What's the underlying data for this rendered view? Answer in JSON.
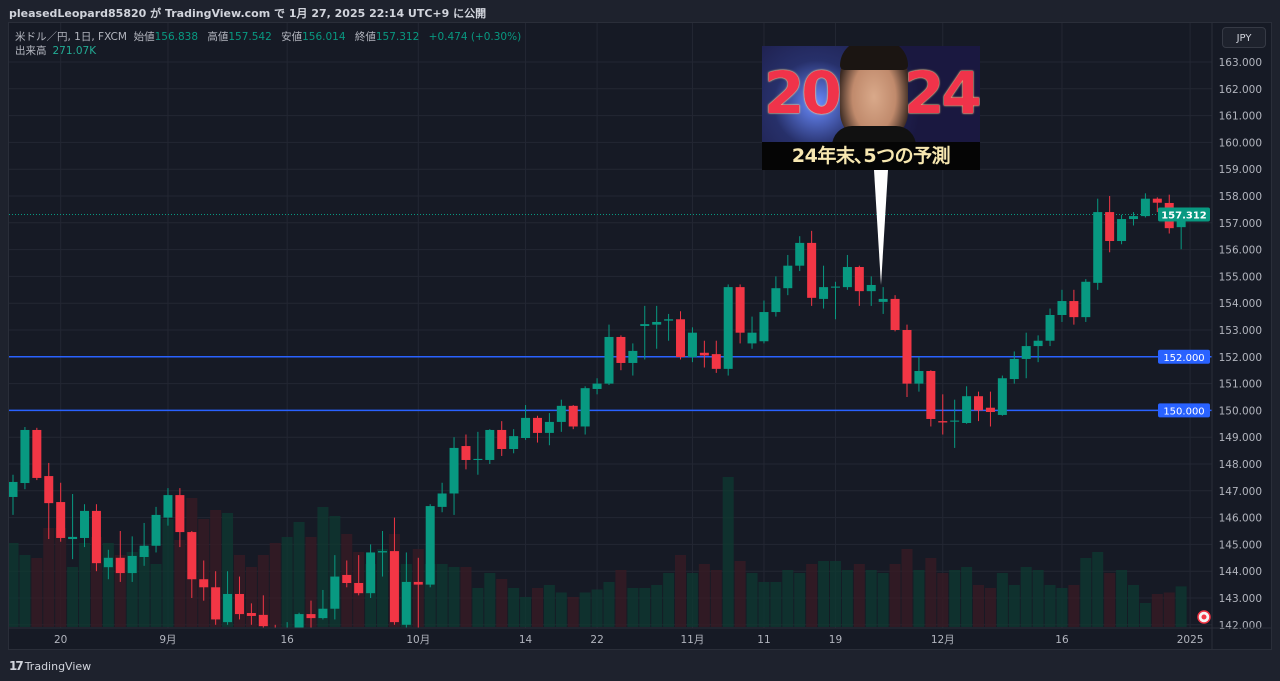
{
  "header": {
    "title": "pleasedLeopard85820 が TradingView.com で 1月 27, 2025 22:14 UTC+9 に公開"
  },
  "legend": {
    "symbol": "米ドル／円, 1日, FXCM",
    "open_label": "始値",
    "open": "156.838",
    "high_label": "高値",
    "high": "157.542",
    "low_label": "安値",
    "low": "156.014",
    "close_label": "終値",
    "close": "157.312",
    "change": "+0.474 (+0.30%)",
    "volume_label": "出来高",
    "volume": "271.07K"
  },
  "currency_button": "JPY",
  "thumbnail": {
    "year_left": "20",
    "year_right": "24",
    "caption": "24年末､5つの予測"
  },
  "footer": {
    "logo_mark": "17",
    "brand": "TradingView"
  },
  "colors": {
    "up": "#089981",
    "down": "#f23645",
    "hline": "#2962ff",
    "last_price": "#089981"
  },
  "icons": {
    "currency_flag": "jpy-flag-icon"
  },
  "chart_data": {
    "type": "candlestick",
    "ylim": [
      142,
      163
    ],
    "y_ticks": [
      "142.000",
      "143.000",
      "144.000",
      "145.000",
      "146.000",
      "147.000",
      "148.000",
      "149.000",
      "150.000",
      "151.000",
      "152.000",
      "153.000",
      "154.000",
      "155.000",
      "156.000",
      "157.000",
      "158.000",
      "159.000",
      "160.000",
      "161.000",
      "162.000",
      "163.000"
    ],
    "x_ticks": [
      {
        "label": "20",
        "index": 4
      },
      {
        "label": "9月",
        "index": 13
      },
      {
        "label": "16",
        "index": 23
      },
      {
        "label": "10月",
        "index": 34
      },
      {
        "label": "14",
        "index": 43
      },
      {
        "label": "22",
        "index": 49
      },
      {
        "label": "11月",
        "index": 57
      },
      {
        "label": "11",
        "index": 63
      },
      {
        "label": "19",
        "index": 69
      },
      {
        "label": "12月",
        "index": 78
      },
      {
        "label": "16",
        "index": 88
      },
      {
        "label": "2025",
        "index": 99
      }
    ],
    "horizontal_lines": [
      {
        "price": 152.0,
        "label": "152.000"
      },
      {
        "price": 150.0,
        "label": "150.000"
      }
    ],
    "last_price": {
      "price": 157.312,
      "label": "157.312"
    },
    "axis_bottom_label": "142.000",
    "columns": [
      "open",
      "high",
      "low",
      "close",
      "volume_k"
    ],
    "candles": [
      [
        146.77,
        147.6,
        146.1,
        147.33,
        560
      ],
      [
        147.29,
        149.38,
        147.06,
        149.27,
        480
      ],
      [
        149.27,
        149.35,
        147.4,
        147.48,
        460
      ],
      [
        147.55,
        148.04,
        145.2,
        146.54,
        660
      ],
      [
        146.58,
        147.3,
        145.1,
        145.24,
        660
      ],
      [
        145.2,
        146.88,
        144.45,
        145.28,
        400
      ],
      [
        145.24,
        146.5,
        144.9,
        146.25,
        560
      ],
      [
        146.25,
        146.5,
        144.0,
        144.3,
        600
      ],
      [
        144.15,
        144.8,
        143.7,
        144.5,
        560
      ],
      [
        144.5,
        145.5,
        143.6,
        143.93,
        480
      ],
      [
        143.93,
        145.3,
        143.6,
        144.57,
        500
      ],
      [
        144.53,
        145.8,
        144.2,
        144.95,
        520
      ],
      [
        144.95,
        146.4,
        144.7,
        146.1,
        420
      ],
      [
        146.0,
        147.1,
        145.7,
        146.84,
        720
      ],
      [
        146.84,
        147.1,
        144.9,
        145.46,
        580
      ],
      [
        145.46,
        145.5,
        143.0,
        143.7,
        860
      ],
      [
        143.7,
        144.4,
        142.9,
        143.4,
        720
      ],
      [
        143.4,
        144.0,
        142.0,
        142.2,
        780
      ],
      [
        142.1,
        144.0,
        142.0,
        143.15,
        760
      ],
      [
        143.15,
        143.8,
        142.2,
        142.4,
        480
      ],
      [
        142.44,
        142.8,
        142.0,
        142.33,
        400
      ],
      [
        142.37,
        143.1,
        141.9,
        141.95,
        480
      ],
      [
        141.8,
        142.0,
        141.3,
        141.6,
        560
      ],
      [
        141.6,
        142.1,
        141.2,
        141.9,
        600
      ],
      [
        141.9,
        142.45,
        141.8,
        142.4,
        700
      ],
      [
        142.4,
        142.9,
        141.8,
        142.25,
        600
      ],
      [
        142.25,
        143.3,
        142.2,
        142.6,
        800
      ],
      [
        142.6,
        144.6,
        142.2,
        143.8,
        740
      ],
      [
        143.86,
        144.4,
        143.4,
        143.56,
        620
      ],
      [
        143.56,
        144.6,
        143.1,
        143.18,
        500
      ],
      [
        143.18,
        145.0,
        143.0,
        144.7,
        420
      ],
      [
        144.7,
        145.5,
        143.8,
        144.75,
        520
      ],
      [
        144.75,
        146.0,
        142.0,
        142.1,
        620
      ],
      [
        142.0,
        144.7,
        141.9,
        143.6,
        420
      ],
      [
        143.6,
        144.5,
        141.9,
        143.5,
        520
      ],
      [
        143.5,
        146.5,
        143.4,
        146.43,
        420
      ],
      [
        146.4,
        147.3,
        146.2,
        146.9,
        420
      ],
      [
        146.9,
        149.0,
        146.1,
        148.6,
        400
      ],
      [
        148.67,
        149.1,
        147.8,
        148.15,
        400
      ],
      [
        148.15,
        149.2,
        147.6,
        148.19,
        260
      ],
      [
        148.15,
        149.3,
        148.0,
        149.27,
        360
      ],
      [
        149.27,
        149.6,
        148.3,
        148.56,
        320
      ],
      [
        148.56,
        149.3,
        148.4,
        149.04,
        260
      ],
      [
        148.97,
        150.2,
        148.9,
        149.72,
        200
      ],
      [
        149.72,
        149.8,
        148.8,
        149.16,
        260
      ],
      [
        149.16,
        149.9,
        148.7,
        149.57,
        280
      ],
      [
        149.57,
        150.4,
        149.2,
        150.17,
        230
      ],
      [
        150.17,
        150.2,
        149.3,
        149.4,
        200
      ],
      [
        149.4,
        150.9,
        149.1,
        150.83,
        230
      ],
      [
        150.8,
        151.2,
        150.6,
        151.0,
        250
      ],
      [
        151.0,
        153.2,
        150.95,
        152.74,
        300
      ],
      [
        152.74,
        152.8,
        151.5,
        151.77,
        380
      ],
      [
        151.77,
        152.5,
        151.3,
        152.22,
        260
      ],
      [
        153.15,
        153.9,
        151.9,
        153.22,
        260
      ],
      [
        153.2,
        153.9,
        152.3,
        153.3,
        280
      ],
      [
        153.35,
        153.6,
        152.6,
        153.4,
        360
      ],
      [
        153.4,
        153.7,
        151.9,
        151.99,
        480
      ],
      [
        151.99,
        153.1,
        151.8,
        152.9,
        360
      ],
      [
        152.15,
        152.6,
        151.6,
        152.05,
        420
      ],
      [
        152.1,
        152.6,
        151.4,
        151.55,
        380
      ],
      [
        151.55,
        154.7,
        151.3,
        154.6,
        1000
      ],
      [
        154.6,
        154.7,
        152.5,
        152.9,
        440
      ],
      [
        152.5,
        153.5,
        152.3,
        152.9,
        360
      ],
      [
        152.58,
        154.1,
        152.5,
        153.67,
        300
      ],
      [
        153.67,
        155.0,
        153.5,
        154.56,
        300
      ],
      [
        154.56,
        155.8,
        154.3,
        155.4,
        380
      ],
      [
        155.4,
        156.5,
        155.2,
        156.25,
        360
      ],
      [
        156.25,
        156.7,
        153.9,
        154.2,
        420
      ],
      [
        154.16,
        155.4,
        153.8,
        154.6,
        440
      ],
      [
        154.58,
        154.8,
        153.4,
        154.62,
        440
      ],
      [
        154.6,
        155.8,
        154.5,
        155.35,
        380
      ],
      [
        155.35,
        155.4,
        153.9,
        154.45,
        420
      ],
      [
        154.45,
        155.0,
        153.9,
        154.68,
        380
      ],
      [
        154.05,
        154.6,
        153.6,
        154.16,
        360
      ],
      [
        154.16,
        154.3,
        152.95,
        153.0,
        420
      ],
      [
        153.0,
        153.2,
        150.5,
        151.0,
        520
      ],
      [
        151.0,
        152.0,
        150.7,
        151.47,
        380
      ],
      [
        151.47,
        151.5,
        149.4,
        149.68,
        460
      ],
      [
        149.6,
        150.6,
        149.1,
        149.55,
        360
      ],
      [
        149.58,
        150.4,
        148.6,
        149.62,
        380
      ],
      [
        149.53,
        150.9,
        149.5,
        150.53,
        400
      ],
      [
        150.53,
        150.7,
        149.6,
        150.0,
        280
      ],
      [
        150.1,
        150.7,
        149.4,
        149.94,
        260
      ],
      [
        149.83,
        151.3,
        149.8,
        151.2,
        360
      ],
      [
        151.17,
        152.2,
        151.0,
        151.92,
        280
      ],
      [
        151.92,
        152.9,
        151.2,
        152.4,
        400
      ],
      [
        152.4,
        152.8,
        151.8,
        152.6,
        380
      ],
      [
        152.6,
        153.8,
        152.4,
        153.56,
        280
      ],
      [
        153.56,
        154.5,
        153.3,
        154.08,
        260
      ],
      [
        154.08,
        154.5,
        153.2,
        153.48,
        280
      ],
      [
        153.48,
        154.9,
        153.3,
        154.8,
        460
      ],
      [
        154.76,
        157.9,
        154.5,
        157.4,
        500
      ],
      [
        157.4,
        158.0,
        155.9,
        156.32,
        360
      ],
      [
        156.32,
        157.3,
        156.2,
        157.14,
        380
      ],
      [
        157.14,
        157.4,
        156.9,
        157.25,
        280
      ],
      [
        157.25,
        158.1,
        157.2,
        157.9,
        160
      ],
      [
        157.9,
        157.95,
        157.4,
        157.75,
        220
      ],
      [
        157.74,
        158.05,
        156.6,
        156.8,
        230
      ],
      [
        156.838,
        157.542,
        156.014,
        157.312,
        271.07
      ]
    ]
  }
}
